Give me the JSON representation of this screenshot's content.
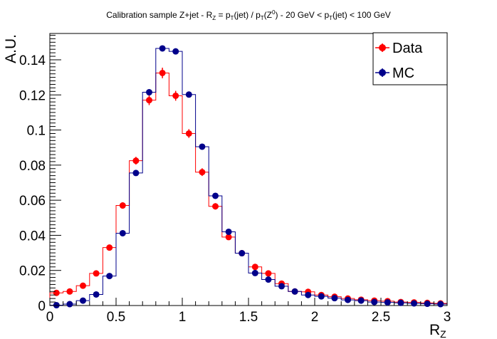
{
  "chart_data": {
    "type": "line",
    "title": {
      "segments": [
        {
          "t": "Calibration sample Z+jet - R"
        },
        {
          "t": "Z",
          "sub": true
        },
        {
          "t": " = p"
        },
        {
          "t": "T",
          "sub": true
        },
        {
          "t": "(jet) / p"
        },
        {
          "t": "T",
          "sub": true
        },
        {
          "t": "(Z"
        },
        {
          "t": "0",
          "sup": true
        },
        {
          "t": ") - 20 GeV < p"
        },
        {
          "t": "T",
          "sub": true
        },
        {
          "t": "(jet) < 100 GeV"
        }
      ]
    },
    "xlabel": {
      "main": "R",
      "sub": "Z"
    },
    "ylabel": "A.U.",
    "xlim": [
      0,
      3
    ],
    "ylim": [
      0,
      0.155
    ],
    "x_ticks": [
      0,
      0.5,
      1,
      1.5,
      2,
      2.5,
      3
    ],
    "x_tick_labels": [
      "0",
      "0.5",
      "1",
      "1.5",
      "2",
      "2.5",
      "3"
    ],
    "y_ticks": [
      0,
      0.02,
      0.04,
      0.06,
      0.08,
      0.1,
      0.12,
      0.14
    ],
    "y_tick_labels": [
      "0",
      "0.02",
      "0.04",
      "0.06",
      "0.08",
      "0.1",
      "0.12",
      "0.14"
    ],
    "grid": false,
    "legend_position": "top-right",
    "bin_edges": [
      0,
      0.1,
      0.2,
      0.3,
      0.4,
      0.5,
      0.6,
      0.7,
      0.8,
      0.9,
      1.0,
      1.1,
      1.2,
      1.3,
      1.4,
      1.5,
      1.6,
      1.7,
      1.8,
      1.9,
      2.0,
      2.1,
      2.2,
      2.3,
      2.4,
      2.5,
      2.6,
      2.7,
      2.8,
      2.9,
      3.0
    ],
    "x": [
      0.05,
      0.15,
      0.25,
      0.35,
      0.45,
      0.55,
      0.65,
      0.75,
      0.85,
      0.95,
      1.05,
      1.15,
      1.25,
      1.35,
      1.45,
      1.55,
      1.65,
      1.75,
      1.85,
      1.95,
      2.05,
      2.15,
      2.25,
      2.35,
      2.45,
      2.55,
      2.65,
      2.75,
      2.85,
      2.95
    ],
    "series": [
      {
        "name": "Data",
        "color": "#ff0000",
        "values": [
          0.0072,
          0.008,
          0.0113,
          0.0183,
          0.033,
          0.057,
          0.0825,
          0.117,
          0.1325,
          0.1195,
          0.098,
          0.076,
          0.0565,
          0.039,
          0.0298,
          0.022,
          0.0183,
          0.0125,
          0.008,
          0.0078,
          0.006,
          0.005,
          0.004,
          0.0033,
          0.0028,
          0.0025,
          0.002,
          0.0018,
          0.0015,
          0.0012
        ],
        "errors": [
          0.0007,
          0.0008,
          0.0009,
          0.0011,
          0.0014,
          0.0018,
          0.0022,
          0.0028,
          0.003,
          0.0028,
          0.0025,
          0.0022,
          0.0018,
          0.0015,
          0.0013,
          0.0011,
          0.001,
          0.0008,
          0.0007,
          0.0007,
          0.0006,
          0.0005,
          0.0005,
          0.0004,
          0.0004,
          0.0004,
          0.0003,
          0.0003,
          0.0003,
          0.0003
        ]
      },
      {
        "name": "MC",
        "color": "#00008b",
        "values": [
          0.0002,
          0.0008,
          0.0028,
          0.0063,
          0.0168,
          0.0412,
          0.0755,
          0.1215,
          0.1465,
          0.1448,
          0.1202,
          0.0905,
          0.0625,
          0.042,
          0.0298,
          0.0185,
          0.0148,
          0.011,
          0.008,
          0.006,
          0.0052,
          0.0042,
          0.0032,
          0.0028,
          0.002,
          0.0018,
          0.0015,
          0.0012,
          0.001,
          0.0008
        ],
        "errors": [
          0.0001,
          0.0002,
          0.0003,
          0.0004,
          0.0005,
          0.0007,
          0.0009,
          0.0011,
          0.0012,
          0.0012,
          0.0011,
          0.0009,
          0.0008,
          0.0006,
          0.0005,
          0.0004,
          0.0004,
          0.0003,
          0.0003,
          0.0003,
          0.0002,
          0.0002,
          0.0002,
          0.0002,
          0.0001,
          0.0001,
          0.0001,
          0.0001,
          0.0001,
          0.0001
        ]
      }
    ]
  }
}
